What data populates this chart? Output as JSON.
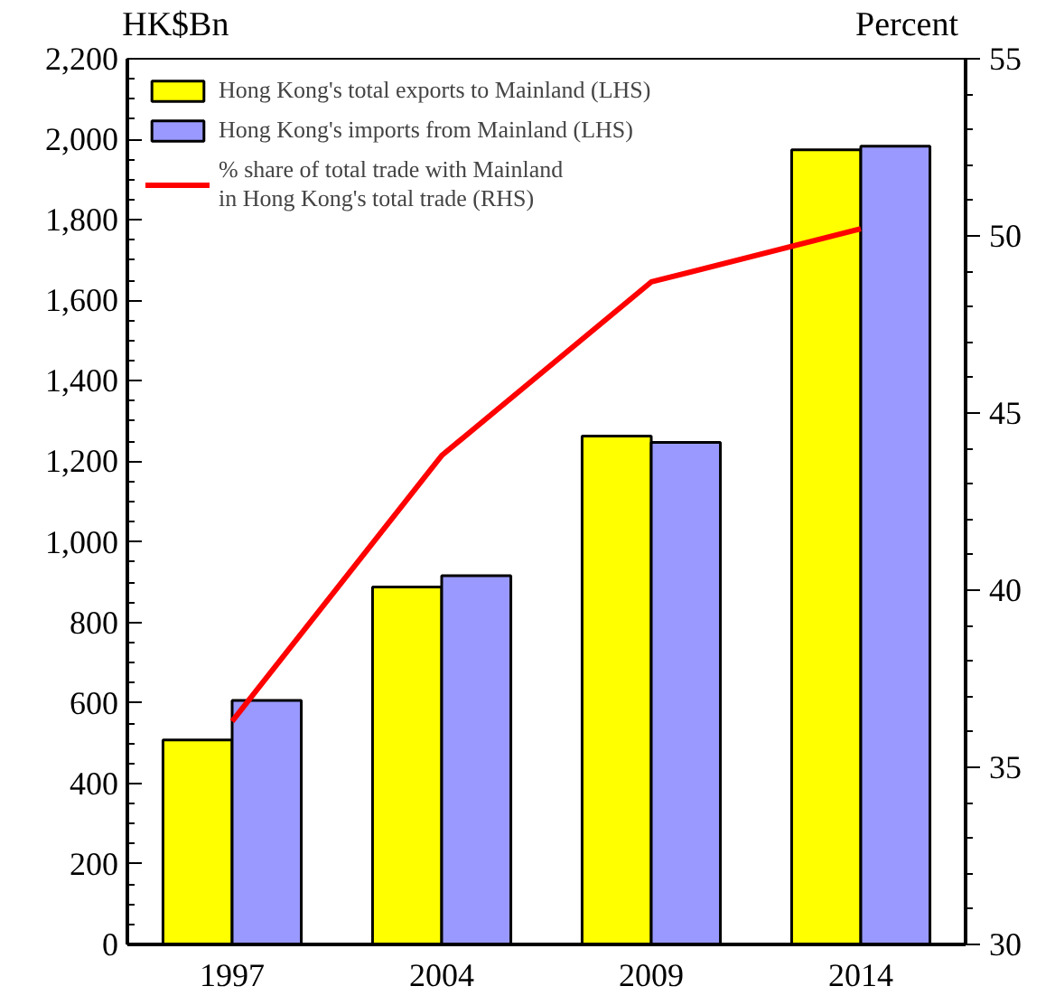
{
  "chart_data": {
    "type": "bar",
    "categories": [
      "1997",
      "2004",
      "2009",
      "2014"
    ],
    "ylabel": "HK$Bn",
    "y2label": "Percent",
    "ylim": [
      0,
      2200
    ],
    "yticks": [
      0,
      200,
      400,
      600,
      800,
      {
        "value": 1000,
        "label": "1,000"
      },
      {
        "value": 1200,
        "label": "1,200"
      },
      {
        "value": 1400,
        "label": "1,400"
      },
      {
        "value": 1600,
        "label": "1,600"
      },
      {
        "value": 1800,
        "label": "1,800"
      },
      {
        "value": 2000,
        "label": "2,000"
      },
      {
        "value": 2200,
        "label": "2,200"
      }
    ],
    "y2lim": [
      30,
      55
    ],
    "y2ticks": [
      30,
      35,
      40,
      45,
      50,
      55
    ],
    "series": [
      {
        "name": "Hong Kong's total exports to Mainland (LHS)",
        "color": "#ffff00",
        "values": [
          508,
          888,
          1263,
          1974
        ]
      },
      {
        "name": "Hong Kong's imports from Mainland (LHS)",
        "color": "#9999ff",
        "values": [
          606,
          916,
          1247,
          1983
        ]
      },
      {
        "name": "% share of total trade with Mainland\nin Hong Kong's total trade (RHS)",
        "type": "line",
        "axis": "y2",
        "color": "#ff0000",
        "values": [
          36.3,
          43.8,
          48.7,
          50.2
        ]
      }
    ],
    "legend": "top left",
    "grid": false
  }
}
